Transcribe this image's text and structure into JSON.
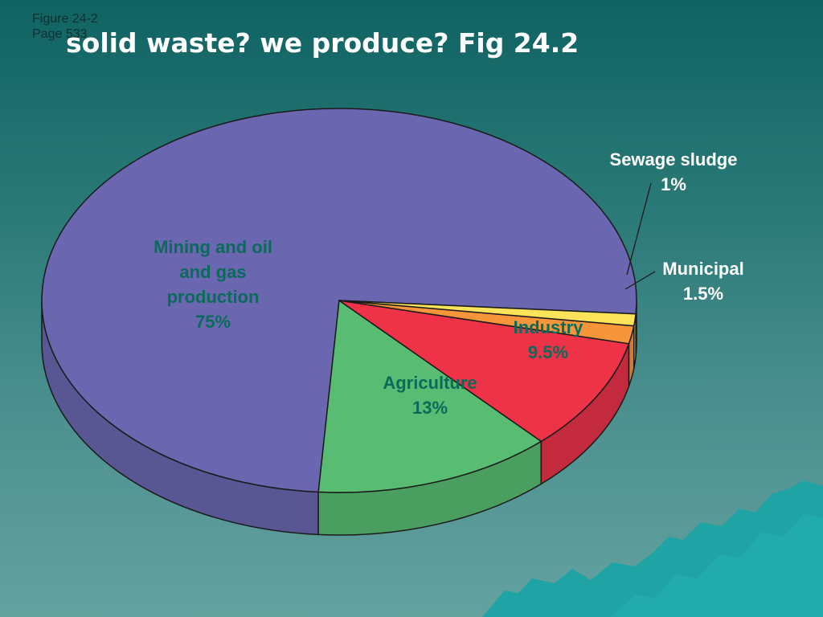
{
  "slide": {
    "figure_ref": "Figure 24-2",
    "page_ref": "Page 533",
    "title": "solid waste? we produce?  Fig 24.2"
  },
  "chart_data": {
    "type": "pie",
    "title": "solid waste? we produce?  Fig 24.2",
    "style": "3d",
    "slices": [
      {
        "name": "Mining and oil and gas production",
        "label_lines": [
          "Mining and oil",
          "and gas",
          "production",
          "75%"
        ],
        "value": 75,
        "color": "#6a67b0",
        "side_color": "#585693",
        "label_color": "#0a6b5a"
      },
      {
        "name": "Agriculture",
        "label_lines": [
          "Agriculture",
          "13%"
        ],
        "value": 13,
        "color": "#58bd72",
        "side_color": "#4a9e60",
        "label_color": "#0a6b5a"
      },
      {
        "name": "Industry",
        "label_lines": [
          "Industry",
          "9.5%"
        ],
        "value": 9.5,
        "color": "#ee3247",
        "side_color": "#c42a3d",
        "label_color": "#0a6b5a"
      },
      {
        "name": "Municipal",
        "label_lines": [
          "Municipal",
          "1.5%"
        ],
        "value": 1.5,
        "color": "#f7953a",
        "side_color": "#d17c30",
        "label_color": "#ffffff"
      },
      {
        "name": "Sewage sludge",
        "label_lines": [
          "Sewage sludge",
          "1%"
        ],
        "value": 1,
        "color": "#fde35a",
        "side_color": "#d6bf4b",
        "label_color": "#ffffff"
      }
    ]
  },
  "theme": {
    "outline": "#1a1a1a",
    "mountain": "#1fa3a5"
  }
}
